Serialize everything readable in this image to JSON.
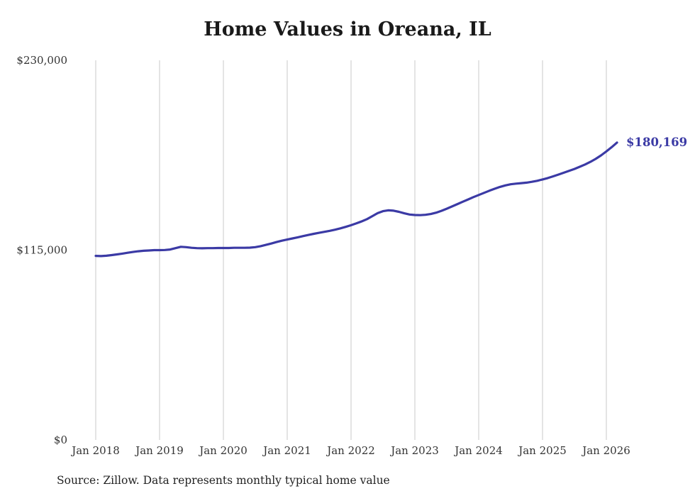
{
  "title": "Home Values in Oreana, IL",
  "source": "Source: Zillow. Data represents monthly typical home value",
  "colors": {
    "line": "#3b3aa5",
    "grid": "#c8c8c8",
    "axis_text": "#333333",
    "title_text": "#1a1a1a"
  },
  "chart_data": {
    "type": "line",
    "title": "Home Values in Oreana, IL",
    "xlabel": "",
    "ylabel": "",
    "ylim": [
      0,
      230000
    ],
    "grid": "vertical-only",
    "legend": "none",
    "x_tick_labels": [
      "Jan 2018",
      "Jan 2019",
      "Jan 2020",
      "Jan 2021",
      "Jan 2022",
      "Jan 2023",
      "Jan 2024",
      "Jan 2025",
      "Jan 2026"
    ],
    "y_ticks": [
      0,
      115000,
      230000
    ],
    "y_tick_labels": [
      "$0",
      "$115,000",
      "$230,000"
    ],
    "x_start_month": "2018-01",
    "x_end_month": "2026-03",
    "annotation": "$180,169",
    "latest_value": 180169,
    "values": [
      111500,
      111400,
      111600,
      112000,
      112400,
      112900,
      113400,
      113900,
      114300,
      114600,
      114800,
      115000,
      115000,
      115100,
      115400,
      116200,
      117000,
      116800,
      116400,
      116200,
      116100,
      116200,
      116200,
      116300,
      116300,
      116300,
      116400,
      116400,
      116400,
      116500,
      116800,
      117400,
      118200,
      119000,
      119900,
      120700,
      121400,
      122100,
      122800,
      123500,
      124200,
      124900,
      125500,
      126100,
      126700,
      127400,
      128200,
      129100,
      130100,
      131200,
      132400,
      133800,
      135600,
      137400,
      138600,
      139100,
      138900,
      138200,
      137300,
      136600,
      136300,
      136200,
      136400,
      136900,
      137700,
      138800,
      140100,
      141500,
      142900,
      144300,
      145700,
      147100,
      148400,
      149700,
      151000,
      152200,
      153300,
      154200,
      154900,
      155300,
      155600,
      155900,
      156400,
      157000,
      157800,
      158700,
      159700,
      160800,
      161900,
      163000,
      164200,
      165500,
      166900,
      168500,
      170300,
      172400,
      174800,
      177400,
      180169
    ]
  }
}
